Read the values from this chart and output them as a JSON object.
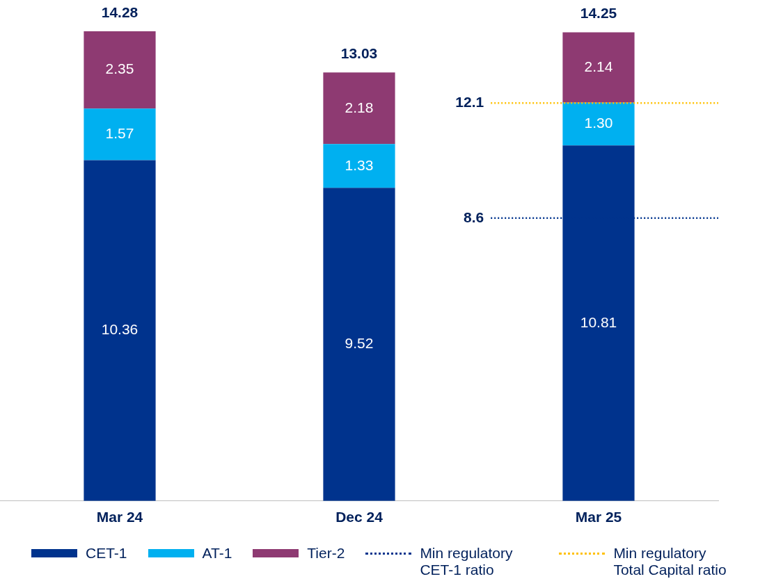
{
  "chart_data": {
    "type": "bar",
    "stacked": true,
    "categories": [
      "Mar 24",
      "Dec 24",
      "Mar 25"
    ],
    "series": [
      {
        "name": "CET-1",
        "color": "#00338d",
        "values": [
          10.36,
          9.52,
          10.81
        ],
        "value_labels": [
          "10.36",
          "9.52",
          "10.81"
        ]
      },
      {
        "name": "AT-1",
        "color": "#00b0f0",
        "values": [
          1.57,
          1.33,
          1.3
        ],
        "value_labels": [
          "1.57",
          "1.33",
          "1.30"
        ]
      },
      {
        "name": "Tier-2",
        "color": "#8e3a72",
        "values": [
          2.35,
          2.18,
          2.14
        ],
        "value_labels": [
          "2.35",
          "2.18",
          "2.14"
        ]
      }
    ],
    "totals": [
      "14.28",
      "13.03",
      "14.25"
    ],
    "ref_lines": [
      {
        "axis": "y",
        "value": 8.6,
        "label": "8.6",
        "color": "#00338d",
        "line_style": "dotted"
      },
      {
        "axis": "y",
        "value": 12.1,
        "label": "12.1",
        "color": "#ffc000",
        "line_style": "dotted"
      }
    ],
    "annotations": [
      "Min regulatory CET-1 ratio",
      "Min regulatory Total Capital ratio"
    ],
    "legend": "bottom",
    "grid": false,
    "tick_labels": "x"
  }
}
